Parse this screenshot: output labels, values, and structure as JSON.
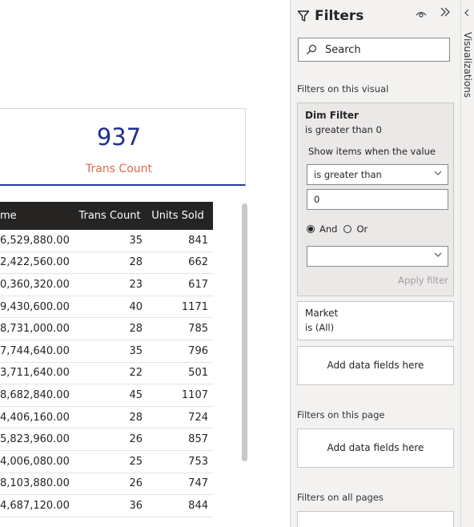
{
  "card": {
    "value": "937",
    "label": "Trans Count"
  },
  "table": {
    "headers": [
      "me",
      "Trans Count",
      "Units Sold"
    ],
    "rows": [
      [
        "6,529,880.00",
        "35",
        "841"
      ],
      [
        "2,422,560.00",
        "28",
        "662"
      ],
      [
        "0,360,320.00",
        "23",
        "617"
      ],
      [
        "9,430,600.00",
        "40",
        "1171"
      ],
      [
        "8,731,000.00",
        "28",
        "785"
      ],
      [
        "7,744,640.00",
        "35",
        "796"
      ],
      [
        "3,711,640.00",
        "22",
        "501"
      ],
      [
        "8,682,840.00",
        "45",
        "1107"
      ],
      [
        "4,406,160.00",
        "28",
        "724"
      ],
      [
        "5,823,960.00",
        "26",
        "857"
      ],
      [
        "4,006,080.00",
        "25",
        "753"
      ],
      [
        "8,103,880.00",
        "26",
        "747"
      ],
      [
        "4,687,120.00",
        "36",
        "844"
      ]
    ]
  },
  "filters": {
    "title": "Filters",
    "search_placeholder": "Search",
    "section_visual": "Filters on this visual",
    "more": "...",
    "dim": {
      "title": "Dim Filter",
      "summary": "is greater than 0",
      "show_items": "Show items when the value",
      "operator": "is greater than",
      "value": "0",
      "and_label": "And",
      "or_label": "Or",
      "apply": "Apply filter"
    },
    "market": {
      "title": "Market",
      "summary": "is (All)"
    },
    "add_fields": "Add data fields here",
    "section_page": "Filters on this page",
    "section_all": "Filters on all pages"
  },
  "visualizations": {
    "label": "Visualizations"
  },
  "icons": [
    "filter-icon",
    "eye-icon",
    "collapse-icon",
    "search-icon",
    "chevron-down-icon",
    "chevron-left-icon"
  ]
}
